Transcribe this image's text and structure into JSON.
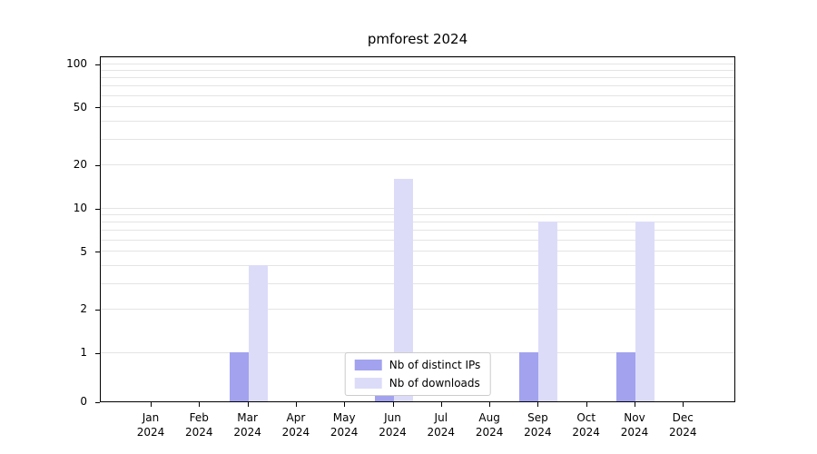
{
  "chart_data": {
    "type": "bar",
    "title": "pmforest 2024",
    "categories": [
      "Jan",
      "Feb",
      "Mar",
      "Apr",
      "May",
      "Jun",
      "Jul",
      "Aug",
      "Sep",
      "Oct",
      "Nov",
      "Dec"
    ],
    "year_label": "2024",
    "series": [
      {
        "name": "Nb of distinct IPs",
        "color": "#a2a2ef",
        "values": [
          0,
          0,
          1,
          0,
          0,
          1,
          0,
          0,
          1,
          0,
          1,
          0
        ]
      },
      {
        "name": "Nb of downloads",
        "color": "#dcdcf9",
        "values": [
          0,
          0,
          4,
          0,
          0,
          16,
          0,
          0,
          8,
          0,
          8,
          0
        ]
      }
    ],
    "yticks": [
      0,
      1,
      2,
      5,
      10,
      20,
      50,
      100
    ],
    "yscale": "symlog",
    "ylim": [
      0,
      115
    ],
    "xlabel": "",
    "ylabel": "",
    "grid": "horizontal",
    "legend_position": "lower center"
  }
}
